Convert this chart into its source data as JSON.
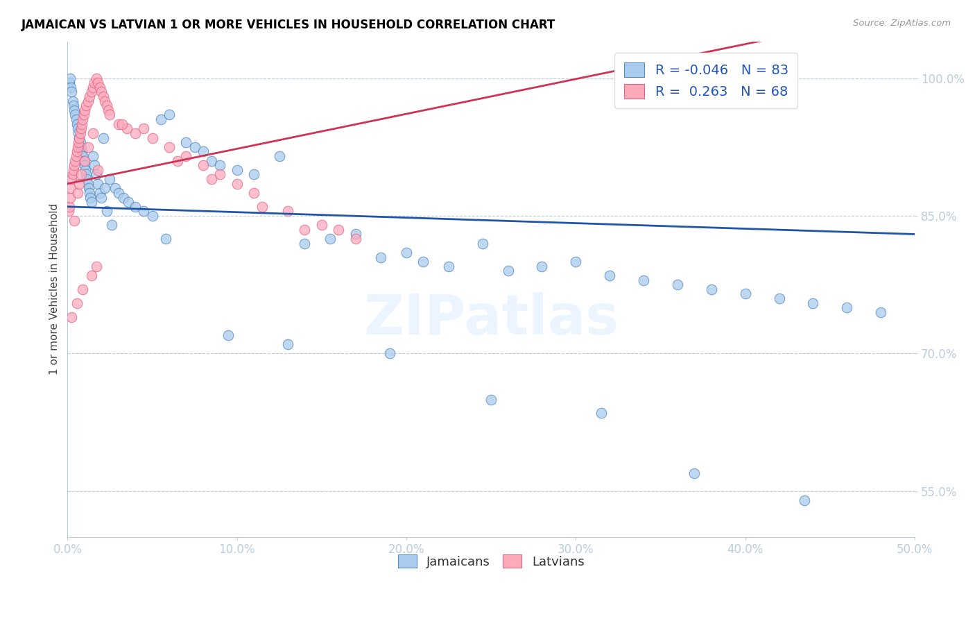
{
  "title": "JAMAICAN VS LATVIAN 1 OR MORE VEHICLES IN HOUSEHOLD CORRELATION CHART",
  "source": "Source: ZipAtlas.com",
  "ylabel": "1 or more Vehicles in Household",
  "x_tick_labels": [
    "0.0%",
    "10.0%",
    "20.0%",
    "30.0%",
    "40.0%",
    "50.0%"
  ],
  "x_tick_values": [
    0.0,
    10.0,
    20.0,
    30.0,
    40.0,
    50.0
  ],
  "y_tick_labels": [
    "100.0%",
    "85.0%",
    "70.0%",
    "55.0%"
  ],
  "y_tick_values": [
    100.0,
    85.0,
    70.0,
    55.0
  ],
  "xlim": [
    0.0,
    50.0
  ],
  "ylim": [
    50.0,
    104.0
  ],
  "legend_R_blue": "-0.046",
  "legend_N_blue": "83",
  "legend_R_pink": "0.263",
  "legend_N_pink": "68",
  "blue_fill": "#AACCEE",
  "blue_edge": "#5588BB",
  "pink_fill": "#FFAABB",
  "pink_edge": "#DD6688",
  "blue_line_color": "#2255AA",
  "pink_line_color": "#CC3355",
  "watermark_text": "ZIPatlas",
  "blue_intercept": 86.0,
  "blue_slope": -0.06,
  "pink_intercept": 88.5,
  "pink_slope": 0.38,
  "jamaican_x": [
    0.1,
    0.15,
    0.2,
    0.25,
    0.3,
    0.35,
    0.4,
    0.45,
    0.5,
    0.55,
    0.6,
    0.65,
    0.7,
    0.75,
    0.8,
    0.85,
    0.9,
    0.95,
    1.0,
    1.05,
    1.1,
    1.15,
    1.2,
    1.25,
    1.3,
    1.35,
    1.4,
    1.5,
    1.6,
    1.7,
    1.8,
    1.9,
    2.0,
    2.1,
    2.2,
    2.5,
    2.8,
    3.0,
    3.3,
    3.6,
    4.0,
    4.5,
    5.0,
    5.5,
    6.0,
    7.0,
    7.5,
    8.0,
    8.5,
    9.0,
    10.0,
    11.0,
    12.5,
    14.0,
    15.5,
    17.0,
    18.5,
    20.0,
    21.0,
    22.5,
    24.5,
    26.0,
    28.0,
    30.0,
    32.0,
    34.0,
    36.0,
    38.0,
    40.0,
    42.0,
    44.0,
    46.0,
    48.0,
    2.3,
    2.6,
    5.8,
    9.5,
    13.0,
    19.0,
    25.0,
    31.5,
    37.0,
    43.5
  ],
  "jamaican_y": [
    99.5,
    100.0,
    99.0,
    98.5,
    97.5,
    97.0,
    96.5,
    96.0,
    95.5,
    95.0,
    94.5,
    94.0,
    93.5,
    93.0,
    92.5,
    92.0,
    91.5,
    91.0,
    90.5,
    90.0,
    89.5,
    89.0,
    88.5,
    88.0,
    87.5,
    87.0,
    86.5,
    91.5,
    90.5,
    89.5,
    88.5,
    87.5,
    87.0,
    93.5,
    88.0,
    89.0,
    88.0,
    87.5,
    87.0,
    86.5,
    86.0,
    85.5,
    85.0,
    95.5,
    96.0,
    93.0,
    92.5,
    92.0,
    91.0,
    90.5,
    90.0,
    89.5,
    91.5,
    82.0,
    82.5,
    83.0,
    80.5,
    81.0,
    80.0,
    79.5,
    82.0,
    79.0,
    79.5,
    80.0,
    78.5,
    78.0,
    77.5,
    77.0,
    76.5,
    76.0,
    75.5,
    75.0,
    74.5,
    85.5,
    84.0,
    82.5,
    72.0,
    71.0,
    70.0,
    65.0,
    63.5,
    57.0,
    54.0
  ],
  "latvian_x": [
    0.05,
    0.1,
    0.15,
    0.2,
    0.25,
    0.3,
    0.35,
    0.4,
    0.45,
    0.5,
    0.55,
    0.6,
    0.65,
    0.7,
    0.75,
    0.8,
    0.85,
    0.9,
    0.95,
    1.0,
    1.1,
    1.2,
    1.3,
    1.4,
    1.5,
    1.6,
    1.7,
    1.8,
    1.9,
    2.0,
    2.1,
    2.2,
    2.3,
    2.4,
    2.5,
    3.0,
    3.5,
    4.0,
    5.0,
    6.0,
    7.0,
    8.0,
    9.0,
    10.0,
    11.0,
    13.0,
    15.0,
    17.0,
    0.6,
    0.7,
    0.8,
    1.0,
    1.2,
    1.5,
    0.4,
    1.8,
    3.2,
    6.5,
    14.0,
    4.5,
    8.5,
    11.5,
    16.0,
    0.25,
    0.55,
    0.9,
    1.4,
    1.7
  ],
  "latvian_y": [
    85.5,
    86.0,
    87.0,
    88.0,
    89.0,
    89.5,
    90.0,
    90.5,
    91.0,
    91.5,
    92.0,
    92.5,
    93.0,
    93.5,
    94.0,
    94.5,
    95.0,
    95.5,
    96.0,
    96.5,
    97.0,
    97.5,
    98.0,
    98.5,
    99.0,
    99.5,
    100.0,
    99.5,
    99.0,
    98.5,
    98.0,
    97.5,
    97.0,
    96.5,
    96.0,
    95.0,
    94.5,
    94.0,
    93.5,
    92.5,
    91.5,
    90.5,
    89.5,
    88.5,
    87.5,
    85.5,
    84.0,
    82.5,
    87.5,
    88.5,
    89.5,
    91.0,
    92.5,
    94.0,
    84.5,
    90.0,
    95.0,
    91.0,
    83.5,
    94.5,
    89.0,
    86.0,
    83.5,
    74.0,
    75.5,
    77.0,
    78.5,
    79.5
  ]
}
